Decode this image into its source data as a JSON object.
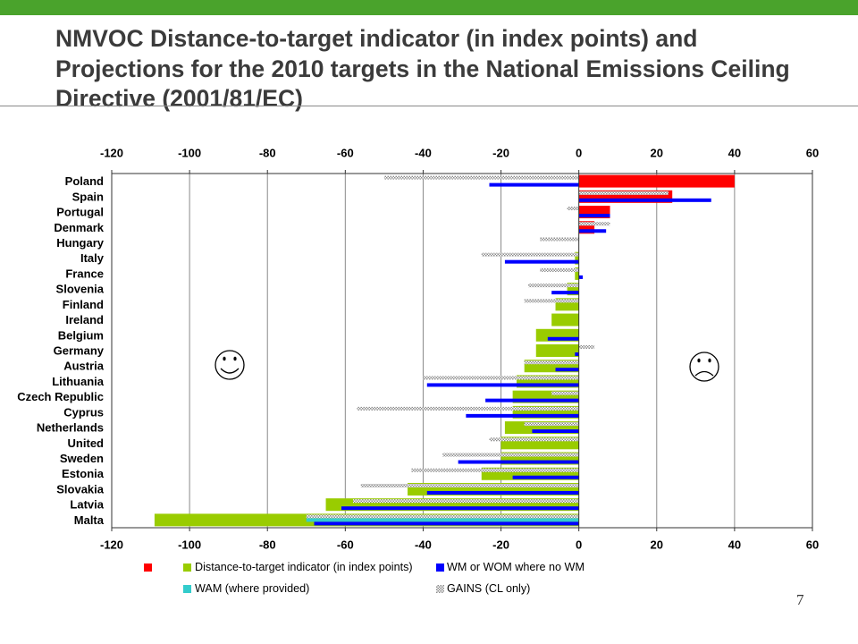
{
  "slide": {
    "title_lines": [
      "NMVOC Distance-to-target indicator (in index points) and",
      "Projections for the 2010 targets in the National Emissions Ceiling",
      "Directive (2001/81/EC)"
    ],
    "page_number": "7",
    "accent_color": "#4aa32c"
  },
  "icons": {
    "left": "smiley-happy-icon",
    "right": "smiley-sad-icon"
  },
  "chart_data": {
    "type": "bar",
    "orientation": "horizontal",
    "categories": [
      "Poland",
      "Spain",
      "Portugal",
      "Denmark",
      "Hungary",
      "Italy",
      "France",
      "Slovenia",
      "Finland",
      "Ireland",
      "Belgium",
      "Germany",
      "Austria",
      "Lithuania",
      "Czech Republic",
      "Cyprus",
      "Netherlands",
      "United",
      "Sweden",
      "Estonia",
      "Slovakia",
      "Latvia",
      "Malta"
    ],
    "xlim": [
      -120,
      60
    ],
    "xticks": [
      -120,
      -100,
      -80,
      -60,
      -40,
      -20,
      0,
      20,
      40,
      60
    ],
    "grid": true,
    "legend": "bottom",
    "series": [
      {
        "color": "#ff0000",
        "values": [
          40,
          24,
          8,
          4,
          null,
          null,
          null,
          null,
          null,
          null,
          null,
          null,
          null,
          null,
          null,
          null,
          null,
          null,
          null,
          null,
          null,
          null,
          null
        ]
      },
      {
        "name": "Distance-to-target indicator (in index points)",
        "color": "#99cc00",
        "values": [
          null,
          null,
          null,
          null,
          null,
          -1,
          -1,
          -3,
          -6,
          -7,
          -11,
          -11,
          -14,
          -16,
          -17,
          -17,
          -19,
          -20,
          -20,
          -25,
          -44,
          -65,
          -109
        ]
      },
      {
        "name": "WM or WOM where no WM",
        "color": "#0000ff",
        "values": [
          -23,
          34,
          8,
          7,
          null,
          -19,
          1,
          -7,
          null,
          null,
          -8,
          -1,
          -6,
          -39,
          -24,
          -29,
          -12,
          null,
          -31,
          -17,
          -39,
          -61,
          -68
        ]
      },
      {
        "name": "WAM (where provided)",
        "color": "#33cccc",
        "values": [
          null,
          null,
          null,
          null,
          null,
          null,
          null,
          null,
          null,
          null,
          null,
          null,
          null,
          null,
          null,
          null,
          null,
          null,
          null,
          null,
          null,
          null,
          -70
        ]
      },
      {
        "name": "GAINS (CL only)",
        "color": "#8c8c8c",
        "values": [
          -50,
          23,
          -3,
          8,
          -10,
          -25,
          -10,
          -13,
          -14,
          null,
          null,
          4,
          -14,
          -40,
          -7,
          -57,
          -14,
          -23,
          -35,
          -43,
          -56,
          -58,
          -70
        ]
      }
    ]
  }
}
